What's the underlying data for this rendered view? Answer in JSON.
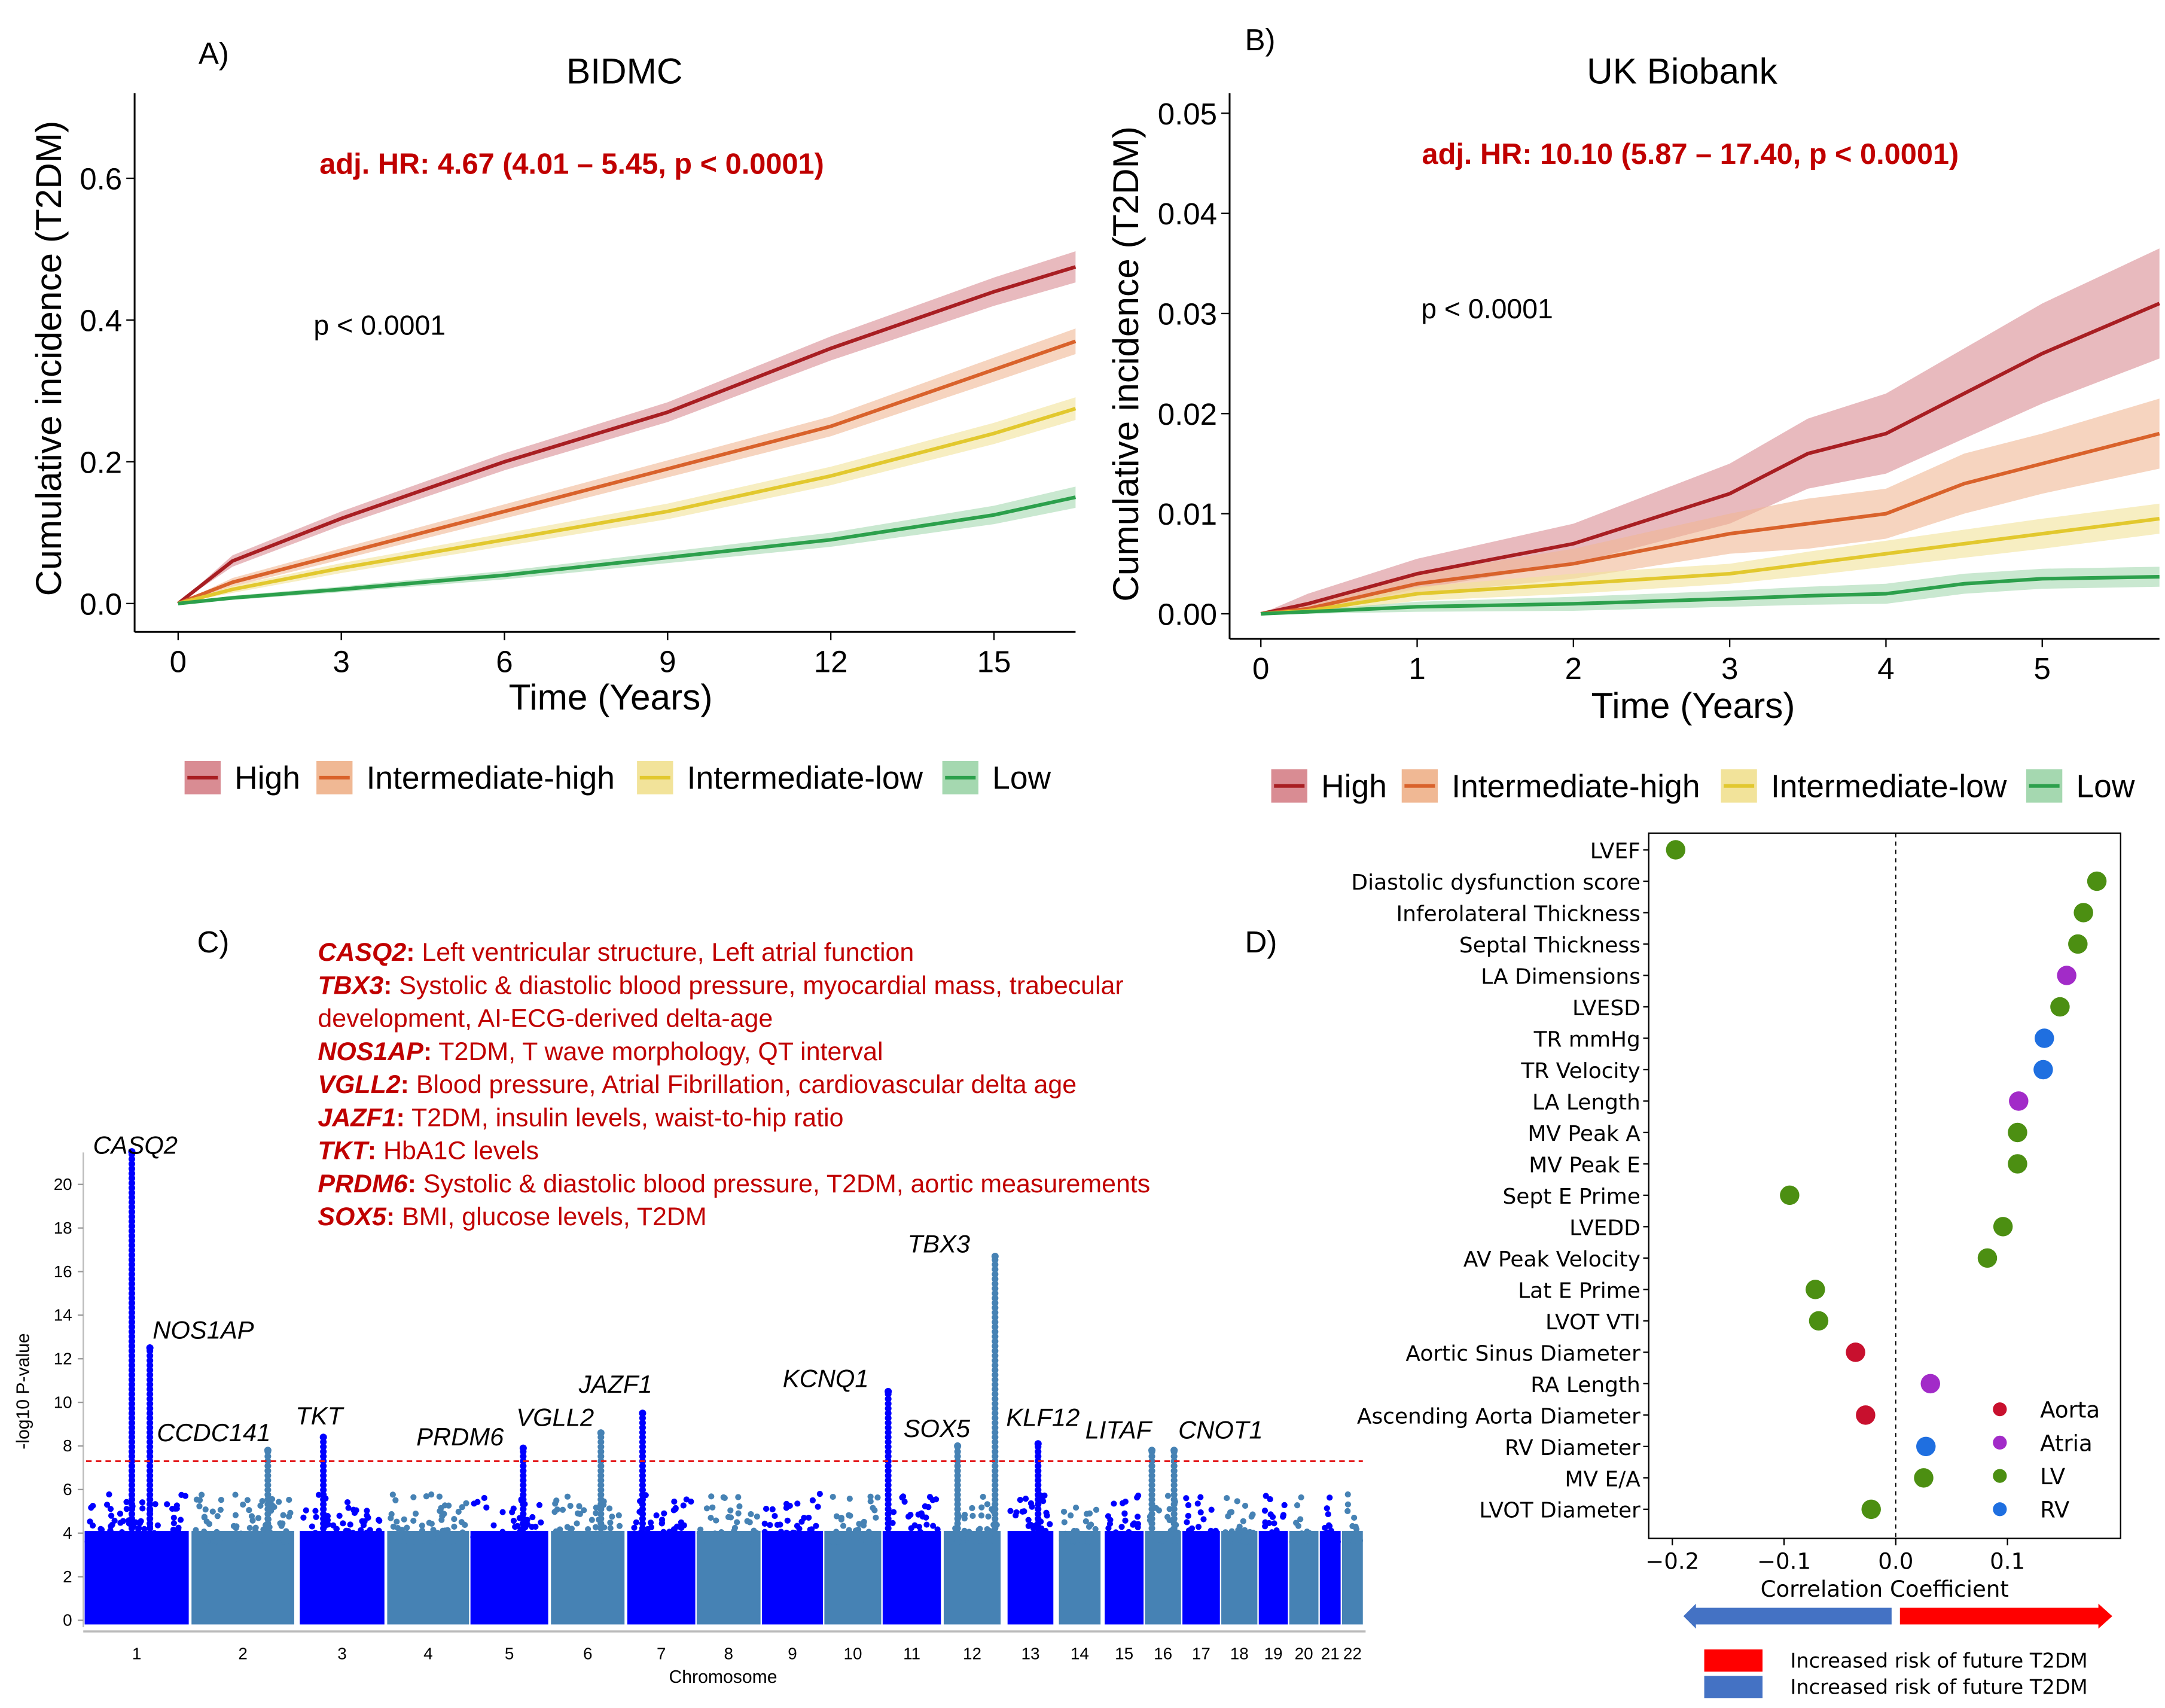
{
  "colors": {
    "high": "#A81E22",
    "high_band": "#D98C93",
    "intermediate_high": "#D9622B",
    "intermediate_high_band": "#F0B894",
    "intermediate_low": "#E2C82E",
    "intermediate_low_band": "#F2E39A",
    "low": "#2CA04C",
    "low_band": "#A5D8B0",
    "annotation_red": "#C00000",
    "chrom_dark": "#0000FF",
    "chrom_light": "#4682B4",
    "threshold": "#E41A1C",
    "aorta": "#C8102E",
    "atria": "#A22BC8",
    "lv": "#4C8F12",
    "rv": "#1F6FE0",
    "arrow_blue": "#4472C4",
    "arrow_red": "#FF0000"
  },
  "legend_labels": [
    "High",
    "Intermediate-high",
    "Intermediate-low",
    "Low"
  ],
  "chart_data": [
    {
      "panel": "A)",
      "type": "line",
      "title": "BIDMC",
      "annotation": "adj. HR: 4.67 (4.01 – 5.45, p < 0.0001)",
      "pvalue_text": "p < 0.0001",
      "xlabel": "Time (Years)",
      "ylabel": "Cumulative incidence (T2DM)",
      "xlim": [
        -0.8,
        16.5
      ],
      "ylim": [
        -0.04,
        0.72
      ],
      "xticks": [
        0,
        3,
        6,
        9,
        12,
        15
      ],
      "yticks": [
        0.0,
        0.2,
        0.4,
        0.6
      ],
      "ytick_labels": [
        "0.0",
        "0.2",
        "0.4",
        "0.6"
      ],
      "legend": "bottom",
      "x": [
        0,
        1,
        3,
        6,
        9,
        12,
        15,
        16.5
      ],
      "series": [
        {
          "name": "High",
          "values": [
            0,
            0.06,
            0.12,
            0.2,
            0.27,
            0.36,
            0.44,
            0.475
          ],
          "ci": [
            0,
            0.008,
            0.01,
            0.012,
            0.014,
            0.017,
            0.02,
            0.022
          ]
        },
        {
          "name": "Intermediate-high",
          "values": [
            0,
            0.03,
            0.07,
            0.13,
            0.19,
            0.25,
            0.33,
            0.37
          ],
          "ci": [
            0,
            0.006,
            0.008,
            0.01,
            0.012,
            0.014,
            0.017,
            0.018
          ]
        },
        {
          "name": "Intermediate-low",
          "values": [
            0,
            0.02,
            0.05,
            0.09,
            0.13,
            0.18,
            0.24,
            0.275
          ],
          "ci": [
            0,
            0.005,
            0.007,
            0.009,
            0.011,
            0.013,
            0.015,
            0.016
          ]
        },
        {
          "name": "Low",
          "values": [
            0,
            0.008,
            0.02,
            0.04,
            0.065,
            0.09,
            0.125,
            0.15
          ],
          "ci": [
            0,
            0.003,
            0.004,
            0.006,
            0.008,
            0.01,
            0.013,
            0.015
          ]
        }
      ]
    },
    {
      "panel": "B)",
      "type": "line",
      "title": "UK Biobank",
      "annotation": "adj. HR: 10.10 (5.87 – 17.40, p < 0.0001)",
      "pvalue_text": "p < 0.0001",
      "xlabel": "Time (Years)",
      "ylabel": "Cumulative incidence (T2DM)",
      "xlim": [
        -0.2,
        5.75
      ],
      "ylim": [
        -0.0025,
        0.052
      ],
      "xticks": [
        0,
        1,
        2,
        3,
        4,
        5
      ],
      "yticks": [
        0.0,
        0.01,
        0.02,
        0.03,
        0.04,
        0.05
      ],
      "ytick_labels": [
        "0.00",
        "0.01",
        "0.02",
        "0.03",
        "0.04",
        "0.05"
      ],
      "legend": "bottom",
      "x": [
        0,
        0.3,
        1,
        2,
        3,
        3.5,
        4,
        4.5,
        5,
        5.75
      ],
      "series": [
        {
          "name": "High",
          "values": [
            0,
            0.001,
            0.004,
            0.007,
            0.012,
            0.016,
            0.018,
            0.022,
            0.026,
            0.031
          ],
          "ci": [
            0,
            0.001,
            0.0015,
            0.002,
            0.003,
            0.0035,
            0.004,
            0.0045,
            0.005,
            0.0055
          ]
        },
        {
          "name": "Intermediate-high",
          "values": [
            0,
            0.0005,
            0.003,
            0.005,
            0.008,
            0.009,
            0.01,
            0.013,
            0.015,
            0.018
          ],
          "ci": [
            0,
            0.0005,
            0.001,
            0.0015,
            0.002,
            0.0025,
            0.0025,
            0.003,
            0.003,
            0.0035
          ]
        },
        {
          "name": "Intermediate-low",
          "values": [
            0,
            0.0003,
            0.002,
            0.003,
            0.004,
            0.005,
            0.006,
            0.007,
            0.008,
            0.0095
          ],
          "ci": [
            0,
            0.0003,
            0.0007,
            0.001,
            0.001,
            0.0012,
            0.0013,
            0.0014,
            0.0015,
            0.0015
          ]
        },
        {
          "name": "Low",
          "values": [
            0,
            0.0002,
            0.0007,
            0.001,
            0.0015,
            0.0018,
            0.002,
            0.003,
            0.0035,
            0.0037
          ],
          "ci": [
            0,
            0.0002,
            0.0005,
            0.0007,
            0.0008,
            0.0009,
            0.001,
            0.001,
            0.001,
            0.001
          ]
        }
      ]
    },
    {
      "panel": "C)",
      "type": "scatter",
      "subtype": "manhattan",
      "xlabel": "Chromosome",
      "ylabel": "-log10 P-value",
      "ylim": [
        0,
        22
      ],
      "yticks": [
        0,
        2,
        4,
        6,
        8,
        10,
        12,
        14,
        16,
        18,
        20
      ],
      "significance_threshold": 7.3,
      "chromosomes": [
        "1",
        "2",
        "3",
        "4",
        "5",
        "6",
        "7",
        "8",
        "9",
        "10",
        "11",
        "12",
        "13",
        "14",
        "15",
        "16",
        "17",
        "18",
        "19",
        "20",
        "21",
        "22"
      ],
      "peaks": [
        {
          "gene": "CASQ2",
          "chromosome": "1",
          "neg_log10_p": 21.5
        },
        {
          "gene": "NOS1AP",
          "chromosome": "1",
          "neg_log10_p": 12.5
        },
        {
          "gene": "CCDC141",
          "chromosome": "2",
          "neg_log10_p": 7.8
        },
        {
          "gene": "TKT",
          "chromosome": "3",
          "neg_log10_p": 8.4
        },
        {
          "gene": "PRDM6",
          "chromosome": "5",
          "neg_log10_p": 7.9
        },
        {
          "gene": "VGLL2",
          "chromosome": "6",
          "neg_log10_p": 8.6
        },
        {
          "gene": "JAZF1",
          "chromosome": "7",
          "neg_log10_p": 9.5
        },
        {
          "gene": "KCNQ1",
          "chromosome": "11",
          "neg_log10_p": 10.5
        },
        {
          "gene": "SOX5",
          "chromosome": "12",
          "neg_log10_p": 8.0
        },
        {
          "gene": "TBX3",
          "chromosome": "12",
          "neg_log10_p": 16.7
        },
        {
          "gene": "KLF12",
          "chromosome": "13",
          "neg_log10_p": 8.1
        },
        {
          "gene": "LITAF",
          "chromosome": "16",
          "neg_log10_p": 7.8
        },
        {
          "gene": "CNOT1",
          "chromosome": "16",
          "neg_log10_p": 7.8
        }
      ],
      "annotations": [
        {
          "gene": "CASQ2",
          "sep": ":",
          "text": " Left ventricular structure, Left atrial function"
        },
        {
          "gene": "TBX3",
          "sep": ":",
          "text": " Systolic & diastolic blood pressure, myocardial mass, trabecular"
        },
        {
          "gene": "",
          "sep": "",
          "text": "development, AI-ECG-derived delta-age"
        },
        {
          "gene": "NOS1AP",
          "sep": ":",
          "text": " T2DM, T wave morphology, QT interval"
        },
        {
          "gene": "VGLL2",
          "sep": ":",
          "text": " Blood pressure, Atrial Fibrillation, cardiovascular delta age"
        },
        {
          "gene": "JAZF1",
          "sep": ":",
          "text": " T2DM, insulin levels, waist-to-hip ratio"
        },
        {
          "gene": "TKT",
          "sep": ":",
          "text": " HbA1C levels"
        },
        {
          "gene": "PRDM6",
          "sep": ":",
          "text": " Systolic & diastolic  blood pressure, T2DM, aortic measurements"
        },
        {
          "gene": "SOX5",
          "sep": ":",
          "text": " BMI, glucose levels, T2DM"
        }
      ]
    },
    {
      "panel": "D)",
      "type": "scatter",
      "subtype": "dot-plot",
      "xlabel": "Correlation Coefficient",
      "xlim": [
        -0.22,
        0.2
      ],
      "xticks": [
        -0.2,
        -0.1,
        0.0,
        0.1
      ],
      "xtick_labels": [
        "−0.2",
        "−0.1",
        "0.0",
        "0.1"
      ],
      "legend": "bottom-right",
      "legend_entries": [
        "Aorta",
        "Atria",
        "LV",
        "RV"
      ],
      "points": [
        {
          "label": "LVEF",
          "value": -0.197,
          "group": "LV"
        },
        {
          "label": "Diastolic dysfunction score",
          "value": 0.18,
          "group": "LV"
        },
        {
          "label": "Inferolateral Thickness",
          "value": 0.168,
          "group": "LV"
        },
        {
          "label": "Septal Thickness",
          "value": 0.163,
          "group": "LV"
        },
        {
          "label": "LA Dimensions",
          "value": 0.153,
          "group": "Atria"
        },
        {
          "label": "LVESD",
          "value": 0.147,
          "group": "LV"
        },
        {
          "label": "TR mmHg",
          "value": 0.133,
          "group": "RV"
        },
        {
          "label": "TR Velocity",
          "value": 0.132,
          "group": "RV"
        },
        {
          "label": "LA Length",
          "value": 0.11,
          "group": "Atria"
        },
        {
          "label": "MV Peak A",
          "value": 0.109,
          "group": "LV"
        },
        {
          "label": "MV Peak E",
          "value": 0.109,
          "group": "LV"
        },
        {
          "label": "Sept E Prime",
          "value": -0.095,
          "group": "LV"
        },
        {
          "label": "LVEDD",
          "value": 0.096,
          "group": "LV"
        },
        {
          "label": "AV Peak Velocity",
          "value": 0.082,
          "group": "LV"
        },
        {
          "label": "Lat E Prime",
          "value": -0.072,
          "group": "LV"
        },
        {
          "label": "LVOT VTI",
          "value": -0.069,
          "group": "LV"
        },
        {
          "label": "Aortic Sinus Diameter",
          "value": -0.036,
          "group": "Aorta"
        },
        {
          "label": "RA Length",
          "value": 0.031,
          "group": "Atria"
        },
        {
          "label": "Ascending Aorta Diameter",
          "value": -0.027,
          "group": "Aorta"
        },
        {
          "label": "RV Diameter",
          "value": 0.027,
          "group": "RV"
        },
        {
          "label": "MV E/A",
          "value": 0.025,
          "group": "LV"
        },
        {
          "label": "LVOT Diameter",
          "value": -0.022,
          "group": "LV"
        }
      ],
      "risk_legend": [
        {
          "color": "#FF0000",
          "text": "Increased risk of future T2DM"
        },
        {
          "color": "#4472C4",
          "text": "Increased risk of future T2DM"
        }
      ]
    }
  ]
}
